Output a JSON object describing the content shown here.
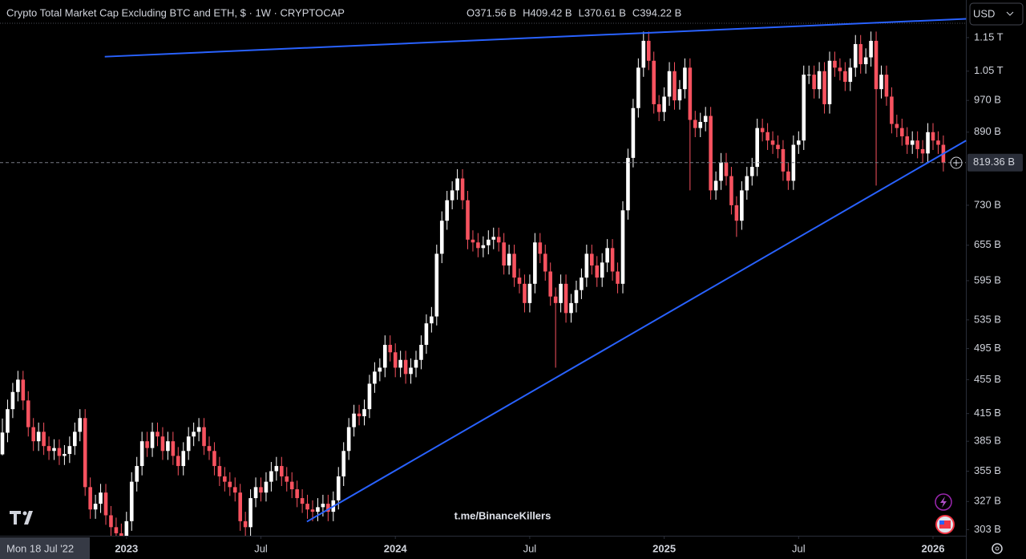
{
  "chart_data": {
    "type": "candlestick",
    "title": "Crypto Total Market Cap Excluding BTC and ETH, $ · 1W · CRYPTOCAP",
    "header_labels": [
      "O371.56 B",
      "H409.42 B",
      "L370.61 B",
      "C394.22 B"
    ],
    "currency": "USD",
    "watermark": "t.me/BinanceKillers",
    "crosshair_label": "Mon 18 Jul '22",
    "categories": [
      null,
      null,
      null,
      null,
      null,
      null,
      null,
      null,
      null,
      null,
      null,
      null,
      null,
      null,
      null,
      null,
      null,
      null,
      null,
      null,
      null,
      null,
      null,
      null,
      "2023",
      null,
      null,
      null,
      null,
      null,
      null,
      null,
      null,
      null,
      null,
      null,
      null,
      null,
      null,
      null,
      null,
      null,
      null,
      null,
      null,
      null,
      null,
      null,
      null,
      null,
      "Jul",
      null,
      null,
      null,
      null,
      null,
      null,
      null,
      null,
      null,
      null,
      null,
      null,
      null,
      null,
      null,
      null,
      null,
      null,
      null,
      null,
      null,
      null,
      null,
      null,
      null,
      "2024",
      null,
      null,
      null,
      null,
      null,
      null,
      null,
      null,
      null,
      null,
      null,
      null,
      null,
      null,
      null,
      null,
      null,
      null,
      null,
      null,
      null,
      null,
      null,
      null,
      null,
      "Jul",
      null,
      null,
      null,
      null,
      null,
      null,
      null,
      null,
      null,
      null,
      null,
      null,
      null,
      null,
      null,
      null,
      null,
      null,
      null,
      null,
      null,
      null,
      null,
      null,
      null,
      "2025",
      null,
      null,
      null,
      null,
      null,
      null,
      null,
      null,
      null,
      null,
      null,
      null,
      null,
      null,
      null,
      null,
      null,
      null,
      null,
      null,
      null,
      null,
      null,
      null,
      null,
      "Jul",
      null,
      null,
      null,
      null,
      null,
      null,
      null,
      null,
      null,
      null,
      null,
      null,
      null,
      null,
      null,
      null,
      null,
      null,
      null,
      null,
      null,
      null,
      null,
      null,
      null,
      "2026",
      null,
      null
    ],
    "open": [
      371.56,
      394,
      420,
      440,
      455,
      430,
      400,
      385,
      395,
      380,
      375,
      378,
      370,
      372,
      380,
      395,
      410,
      340,
      320,
      325,
      335,
      315,
      305,
      300,
      298,
      310,
      345,
      360,
      385,
      378,
      395,
      390,
      375,
      385,
      370,
      360,
      375,
      390,
      395,
      400,
      380,
      375,
      360,
      350,
      345,
      340,
      335,
      310,
      305,
      330,
      340,
      335,
      345,
      355,
      360,
      350,
      345,
      338,
      330,
      325,
      320,
      318,
      322,
      325,
      318,
      328,
      350,
      375,
      400,
      415,
      412,
      420,
      450,
      465,
      470,
      500,
      490,
      470,
      480,
      462,
      470,
      480,
      500,
      530,
      540,
      640,
      700,
      740,
      760,
      785,
      740,
      665,
      660,
      650,
      655,
      665,
      670,
      660,
      620,
      640,
      600,
      590,
      560,
      590,
      660,
      640,
      610,
      570,
      560,
      590,
      545,
      560,
      580,
      600,
      640,
      620,
      600,
      625,
      650,
      610,
      590,
      720,
      830,
      950,
      1060,
      1140,
      1080,
      960,
      940,
      980,
      1050,
      970,
      1000,
      1060,
      920,
      900,
      915,
      930,
      760,
      780,
      820,
      790,
      730,
      700,
      760,
      790,
      810,
      900,
      890,
      870,
      860,
      850,
      800,
      780,
      860,
      870,
      1040,
      1040,
      1000,
      1050,
      960,
      1080,
      1060,
      1050,
      1020,
      1060,
      1130,
      1070,
      1090,
      1140,
      1000,
      1040,
      980,
      910,
      900,
      880,
      860,
      870,
      850,
      840,
      890,
      870,
      860
    ],
    "high": [
      409.42,
      431,
      451,
      466,
      466,
      441,
      410,
      405,
      405,
      390,
      387,
      387,
      381,
      390,
      405,
      420,
      420,
      349,
      333,
      343,
      343,
      323,
      313,
      308,
      318,
      354,
      369,
      395,
      395,
      405,
      405,
      400,
      395,
      395,
      379,
      384,
      400,
      405,
      410,
      410,
      390,
      384,
      369,
      359,
      354,
      349,
      343,
      318,
      338,
      349,
      349,
      354,
      364,
      369,
      369,
      359,
      354,
      346,
      338,
      333,
      328,
      330,
      333,
      333,
      336,
      359,
      384,
      410,
      425,
      425,
      431,
      461,
      477,
      482,
      513,
      513,
      502,
      492,
      492,
      482,
      492,
      513,
      543,
      554,
      656,
      718,
      759,
      779,
      805,
      805,
      759,
      682,
      677,
      671,
      682,
      687,
      687,
      677,
      656,
      656,
      615,
      605,
      605,
      677,
      677,
      656,
      625,
      584,
      605,
      605,
      574,
      595,
      615,
      656,
      656,
      636,
      641,
      666,
      666,
      625,
      738,
      851,
      974,
      1087,
      1169,
      1169,
      1107,
      984,
      1005,
      1076,
      1076,
      1025,
      1087,
      1087,
      943,
      938,
      953,
      953,
      800,
      841,
      841,
      810,
      748,
      779,
      810,
      830,
      923,
      923,
      912,
      892,
      882,
      871,
      820,
      882,
      892,
      1066,
      1066,
      1066,
      1076,
      1076,
      1107,
      1107,
      1087,
      1076,
      1087,
      1158,
      1158,
      1117,
      1169,
      1169,
      1066,
      1066,
      1005,
      933,
      923,
      902,
      892,
      892,
      871,
      912,
      912,
      892,
      882
    ],
    "low": [
      370.61,
      384,
      410,
      429,
      419,
      390,
      375,
      375,
      371,
      366,
      366,
      361,
      361,
      363,
      371,
      385,
      332,
      312,
      312,
      317,
      307,
      297,
      293,
      291,
      291,
      302,
      336,
      351,
      369,
      369,
      380,
      366,
      366,
      361,
      351,
      351,
      366,
      380,
      385,
      371,
      366,
      351,
      341,
      336,
      332,
      327,
      302,
      297,
      297,
      322,
      327,
      327,
      336,
      346,
      341,
      336,
      330,
      322,
      317,
      312,
      310,
      310,
      314,
      310,
      310,
      320,
      341,
      366,
      390,
      402,
      402,
      410,
      439,
      453,
      458,
      478,
      458,
      458,
      450,
      450,
      458,
      468,
      488,
      517,
      527,
      624,
      683,
      722,
      741,
      722,
      648,
      644,
      634,
      634,
      639,
      648,
      644,
      605,
      605,
      585,
      575,
      546,
      546,
      575,
      624,
      595,
      556,
      470,
      546,
      531,
      531,
      546,
      566,
      585,
      605,
      585,
      585,
      609,
      595,
      575,
      575,
      702,
      809,
      926,
      1034,
      1053,
      936,
      917,
      917,
      956,
      946,
      946,
      975,
      760,
      878,
      878,
      892,
      741,
      741,
      761,
      770,
      712,
      670,
      683,
      741,
      770,
      790,
      868,
      848,
      839,
      829,
      780,
      761,
      761,
      839,
      848,
      1014,
      975,
      975,
      936,
      936,
      1034,
      1024,
      995,
      995,
      1034,
      1043,
      1043,
      1063,
      770,
      975,
      956,
      887,
      878,
      858,
      839,
      839,
      829,
      819,
      819,
      848,
      839,
      800
    ],
    "close": [
      394.22,
      420,
      440,
      455,
      430,
      400,
      385,
      395,
      380,
      375,
      378,
      370,
      372,
      380,
      395,
      410,
      340,
      320,
      325,
      335,
      315,
      305,
      300,
      298,
      310,
      345,
      360,
      385,
      378,
      395,
      390,
      375,
      385,
      370,
      360,
      375,
      390,
      395,
      400,
      380,
      375,
      360,
      350,
      345,
      340,
      335,
      310,
      305,
      330,
      340,
      335,
      345,
      355,
      360,
      350,
      345,
      338,
      330,
      325,
      320,
      318,
      322,
      325,
      318,
      328,
      350,
      375,
      400,
      415,
      412,
      420,
      450,
      465,
      470,
      500,
      490,
      470,
      480,
      462,
      470,
      480,
      500,
      530,
      540,
      640,
      700,
      740,
      760,
      785,
      740,
      665,
      660,
      650,
      655,
      665,
      670,
      660,
      620,
      640,
      600,
      590,
      560,
      590,
      660,
      640,
      610,
      570,
      560,
      590,
      545,
      560,
      580,
      600,
      640,
      620,
      600,
      625,
      650,
      610,
      590,
      720,
      830,
      950,
      1060,
      1140,
      1080,
      960,
      940,
      980,
      1050,
      970,
      1000,
      1060,
      920,
      900,
      915,
      930,
      760,
      780,
      820,
      790,
      730,
      700,
      760,
      790,
      810,
      900,
      890,
      870,
      860,
      850,
      800,
      780,
      860,
      870,
      1040,
      1040,
      1000,
      1050,
      960,
      1080,
      1060,
      1050,
      1020,
      1060,
      1130,
      1070,
      1090,
      1140,
      1000,
      1040,
      980,
      910,
      900,
      880,
      860,
      870,
      850,
      840,
      890,
      870,
      860,
      819.36
    ],
    "up_color": "#ffffff",
    "down_color": "#f7525f",
    "log_scale": true,
    "ylim": [
      298,
      1193
    ],
    "yticks": [
      {
        "value": 303,
        "label": "303 B"
      },
      {
        "value": 327,
        "label": "327 B"
      },
      {
        "value": 355,
        "label": "355 B"
      },
      {
        "value": 385,
        "label": "385 B"
      },
      {
        "value": 415,
        "label": "415 B"
      },
      {
        "value": 455,
        "label": "455 B"
      },
      {
        "value": 495,
        "label": "495 B"
      },
      {
        "value": 535,
        "label": "535 B"
      },
      {
        "value": 595,
        "label": "595 B"
      },
      {
        "value": 655,
        "label": "655 B"
      },
      {
        "value": 730,
        "label": "730 B"
      },
      {
        "value": 890,
        "label": "890 B"
      },
      {
        "value": 970,
        "label": "970 B"
      },
      {
        "value": 1050,
        "label": "1.05 T"
      },
      {
        "value": 1150,
        "label": "1.15 T"
      }
    ],
    "last_price": {
      "value": 819.36,
      "label": "819.36 B"
    },
    "trendline_color": "#2962ff",
    "trendlines": [
      {
        "x": [
          19.8,
          186.4
        ],
        "y": [
          1092,
          1210
        ]
      },
      {
        "x": [
          58.9,
          186.4
        ],
        "y": [
          309.6,
          870
        ]
      }
    ]
  }
}
